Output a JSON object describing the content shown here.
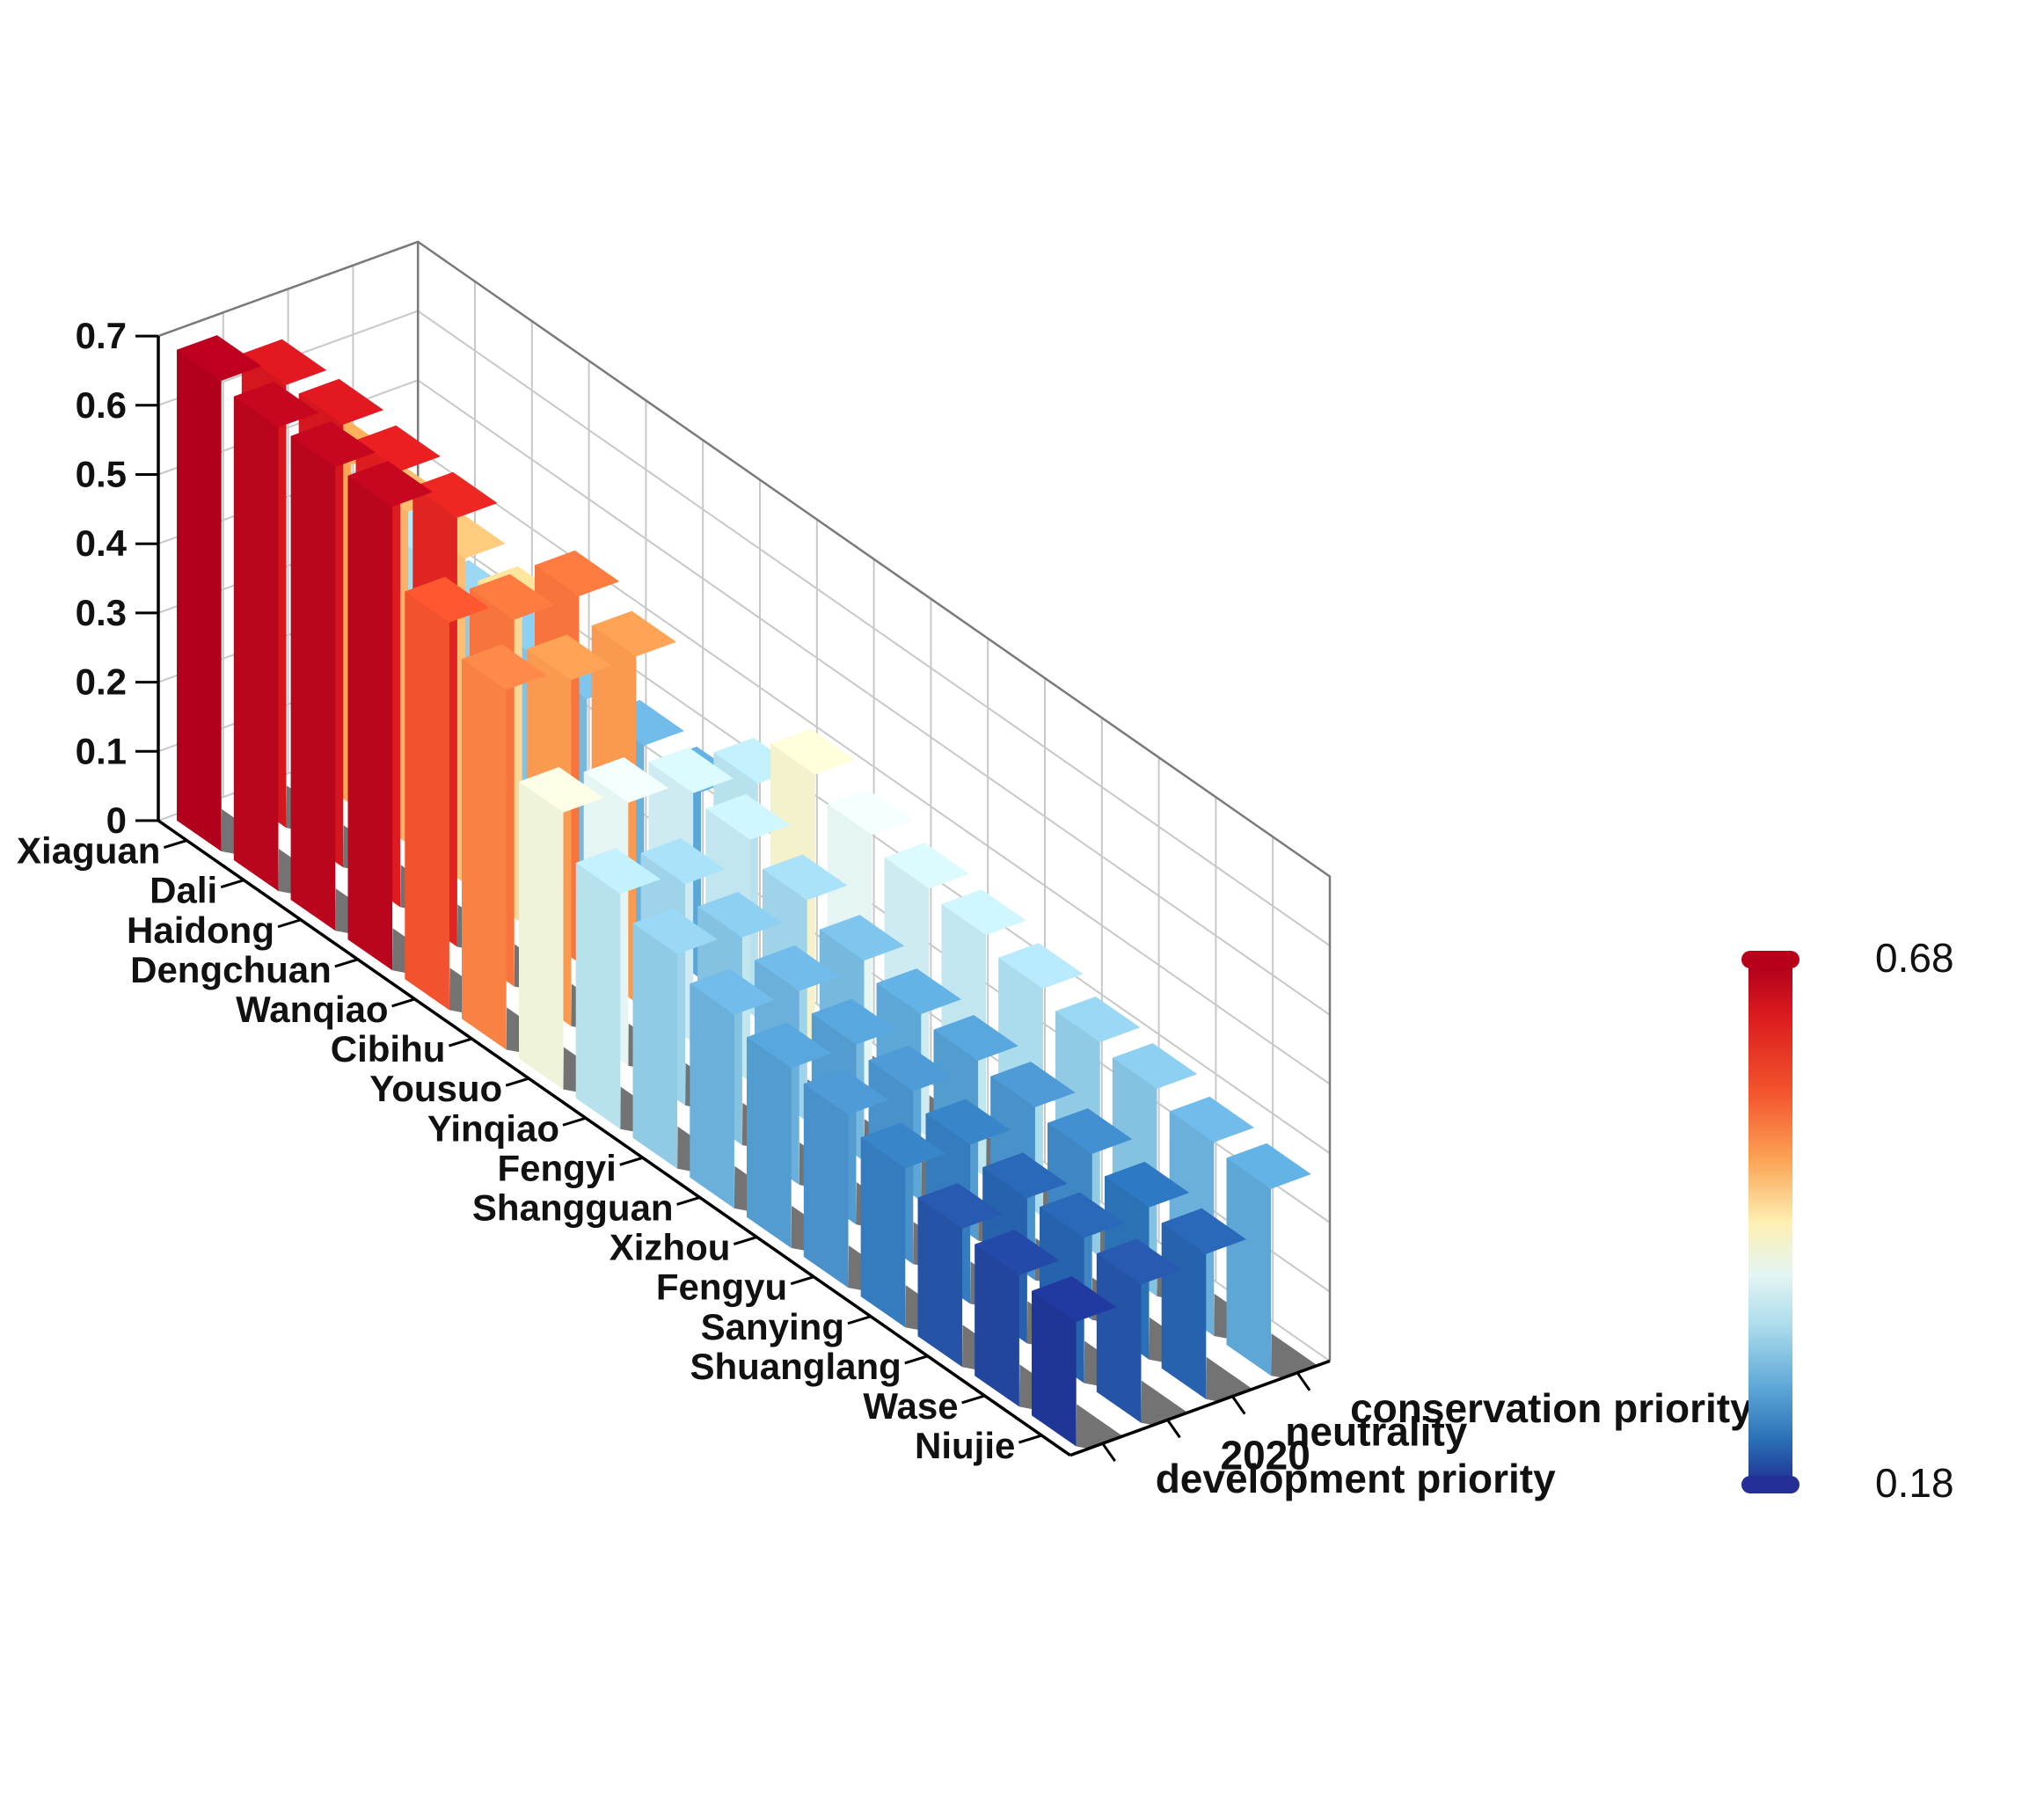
{
  "chart_data": {
    "type": "bar3d",
    "title": "",
    "zlabel": "",
    "zlim": [
      0,
      0.7
    ],
    "zticks": [
      "0",
      "0.1",
      "0.2",
      "0.3",
      "0.4",
      "0.5",
      "0.6",
      "0.7"
    ],
    "grid": true,
    "categories": [
      "Xiaguan",
      "Dali",
      "Haidong",
      "Dengchuan",
      "Wanqiao",
      "Cibihu",
      "Yousuo",
      "Yinqiao",
      "Fengyi",
      "Shangguan",
      "Xizhou",
      "Fengyu",
      "Sanying",
      "Shuanglang",
      "Wase",
      "Niujie"
    ],
    "series": [
      {
        "name": "development priority",
        "values": [
          0.68,
          0.67,
          0.67,
          0.67,
          0.56,
          0.52,
          0.4,
          0.34,
          0.31,
          0.28,
          0.26,
          0.25,
          0.23,
          0.2,
          0.19,
          0.18
        ]
      },
      {
        "name": "2020",
        "values": [
          0.64,
          0.64,
          0.63,
          0.62,
          0.53,
          0.5,
          0.38,
          0.32,
          0.3,
          0.28,
          0.26,
          0.25,
          0.23,
          0.21,
          0.21,
          0.2
        ]
      },
      {
        "name": "neutrality",
        "values": [
          0.49,
          0.48,
          0.47,
          0.45,
          0.53,
          0.5,
          0.36,
          0.35,
          0.32,
          0.29,
          0.27,
          0.26,
          0.25,
          0.24,
          0.22,
          0.21
        ]
      },
      {
        "name": "conservation priority",
        "values": [
          0.33,
          0.31,
          0.3,
          0.29,
          0.28,
          0.27,
          0.34,
          0.41,
          0.38,
          0.36,
          0.35,
          0.33,
          0.31,
          0.3,
          0.28,
          0.27
        ]
      }
    ],
    "colorbar": {
      "max_label": "0.68",
      "min_label": "0.18",
      "min": 0.18,
      "max": 0.68
    }
  }
}
